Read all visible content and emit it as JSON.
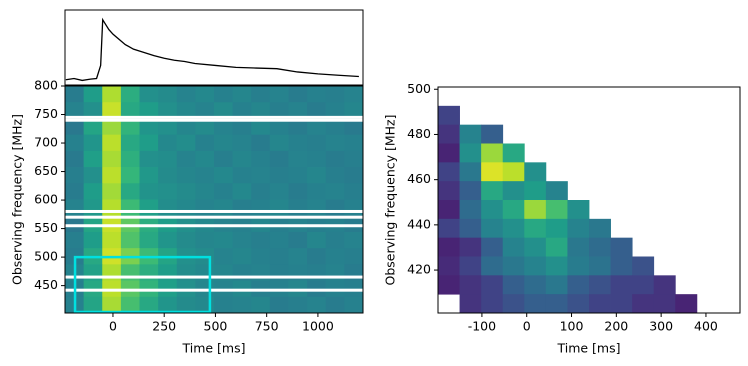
{
  "chart_data": [
    {
      "type": "line",
      "color": "#000000",
      "x": [
        -230,
        -190,
        -150,
        -110,
        -80,
        -60,
        -50,
        -40,
        -20,
        0,
        30,
        60,
        100,
        150,
        200,
        250,
        300,
        350,
        400,
        500,
        600,
        700,
        800,
        900,
        1000,
        1100,
        1200
      ],
      "values": [
        0.08,
        0.1,
        0.07,
        0.09,
        0.1,
        0.3,
        1.0,
        0.95,
        0.85,
        0.78,
        0.7,
        0.62,
        0.55,
        0.5,
        0.45,
        0.41,
        0.38,
        0.36,
        0.33,
        0.3,
        0.27,
        0.26,
        0.25,
        0.2,
        0.17,
        0.15,
        0.13
      ],
      "xlim": [
        -234,
        1220
      ],
      "ylim": [
        0,
        1.15
      ]
    },
    {
      "type": "heatmap",
      "colormap": "viridis",
      "xlabel": "Time [ms]",
      "ylabel": "Observing frequency [MHz]",
      "xlim": [
        -234,
        1220
      ],
      "ylim": [
        402,
        800
      ],
      "xticks": [
        0,
        250,
        500,
        750,
        1000
      ],
      "yticks": [
        450,
        500,
        550,
        600,
        650,
        700,
        750,
        800
      ],
      "masked_channels": [
        745,
        740,
        580,
        570,
        555,
        465,
        442
      ],
      "box": {
        "x": [
          -185,
          473
        ],
        "y": [
          402,
          500
        ],
        "color": "#00e0e0"
      },
      "z": [
        [
          0.42,
          0.55,
          0.88,
          0.62,
          0.5,
          0.48,
          0.45,
          0.47,
          0.44,
          0.46,
          0.43,
          0.45,
          0.42,
          0.44,
          0.43,
          0.45
        ],
        [
          0.45,
          0.5,
          0.92,
          0.6,
          0.55,
          0.5,
          0.47,
          0.45,
          0.48,
          0.44,
          0.46,
          0.43,
          0.45,
          0.42,
          0.44,
          0.46
        ],
        [
          0.4,
          0.58,
          0.85,
          0.65,
          0.52,
          0.5,
          0.46,
          0.48,
          0.45,
          0.43,
          0.47,
          0.44,
          0.42,
          0.45,
          0.43,
          0.41
        ],
        [
          0.44,
          0.52,
          0.9,
          0.6,
          0.55,
          0.47,
          0.49,
          0.44,
          0.46,
          0.45,
          0.42,
          0.46,
          0.44,
          0.43,
          0.45,
          0.44
        ],
        [
          0.41,
          0.56,
          0.87,
          0.63,
          0.5,
          0.49,
          0.45,
          0.47,
          0.43,
          0.46,
          0.44,
          0.42,
          0.45,
          0.44,
          0.42,
          0.43
        ],
        [
          0.43,
          0.5,
          0.9,
          0.66,
          0.53,
          0.48,
          0.46,
          0.45,
          0.47,
          0.44,
          0.45,
          0.43,
          0.44,
          0.46,
          0.43,
          0.42
        ],
        [
          0.42,
          0.55,
          0.86,
          0.6,
          0.51,
          0.5,
          0.48,
          0.46,
          0.44,
          0.47,
          0.43,
          0.45,
          0.42,
          0.44,
          0.45,
          0.43
        ],
        [
          0.45,
          0.53,
          0.89,
          0.68,
          0.56,
          0.49,
          0.47,
          0.45,
          0.46,
          0.43,
          0.44,
          0.46,
          0.43,
          0.45,
          0.42,
          0.44
        ],
        [
          0.4,
          0.58,
          0.92,
          0.75,
          0.62,
          0.55,
          0.5,
          0.47,
          0.45,
          0.44,
          0.46,
          0.43,
          0.45,
          0.43,
          0.44,
          0.42
        ],
        [
          0.43,
          0.55,
          0.9,
          0.72,
          0.6,
          0.52,
          0.48,
          0.46,
          0.47,
          0.45,
          0.43,
          0.44,
          0.42,
          0.46,
          0.43,
          0.45
        ],
        [
          0.42,
          0.6,
          0.93,
          0.8,
          0.68,
          0.58,
          0.5,
          0.48,
          0.45,
          0.46,
          0.44,
          0.43,
          0.45,
          0.42,
          0.44,
          0.43
        ],
        [
          0.45,
          0.57,
          0.88,
          0.7,
          0.62,
          0.55,
          0.49,
          0.47,
          0.46,
          0.44,
          0.45,
          0.43,
          0.44,
          0.43,
          0.45,
          0.42
        ],
        [
          0.43,
          0.6,
          0.9,
          0.74,
          0.65,
          0.56,
          0.5,
          0.46,
          0.45,
          0.47,
          0.43,
          0.44,
          0.46,
          0.42,
          0.44,
          0.43
        ],
        [
          0.44,
          0.58,
          0.87,
          0.7,
          0.6,
          0.52,
          0.48,
          0.47,
          0.44,
          0.45,
          0.46,
          0.42,
          0.43,
          0.45,
          0.42,
          0.44
        ]
      ]
    },
    {
      "type": "heatmap",
      "colormap": "viridis",
      "xlabel": "Time [ms]",
      "ylabel": "Observing frequency [MHz]",
      "xlim": [
        -198,
        476
      ],
      "ylim": [
        401,
        501
      ],
      "xticks": [
        -100,
        0,
        100,
        200,
        300,
        400
      ],
      "yticks": [
        420,
        440,
        460,
        480,
        500
      ],
      "z": [
        [
          null,
          null,
          null,
          null,
          null,
          null,
          null,
          null,
          null,
          null,
          null,
          null,
          null,
          null
        ],
        [
          0.2,
          null,
          null,
          null,
          null,
          null,
          null,
          null,
          null,
          null,
          null,
          null,
          null,
          null
        ],
        [
          0.15,
          0.45,
          0.3,
          null,
          null,
          null,
          null,
          null,
          null,
          null,
          null,
          null,
          null,
          null
        ],
        [
          0.1,
          0.5,
          0.85,
          0.6,
          null,
          null,
          null,
          null,
          null,
          null,
          null,
          null,
          null,
          null
        ],
        [
          0.2,
          0.4,
          0.95,
          0.9,
          0.5,
          null,
          null,
          null,
          null,
          null,
          null,
          null,
          null,
          null
        ],
        [
          0.15,
          0.3,
          0.6,
          0.5,
          0.55,
          0.45,
          null,
          null,
          null,
          null,
          null,
          null,
          null,
          null
        ],
        [
          0.1,
          0.35,
          0.5,
          0.6,
          0.85,
          0.7,
          0.5,
          null,
          null,
          null,
          null,
          null,
          null,
          null
        ],
        [
          0.2,
          0.3,
          0.45,
          0.5,
          0.6,
          0.55,
          0.45,
          0.4,
          null,
          null,
          null,
          null,
          null,
          null
        ],
        [
          0.1,
          0.15,
          0.3,
          0.45,
          0.5,
          0.6,
          0.4,
          0.35,
          0.3,
          null,
          null,
          null,
          null,
          null
        ],
        [
          0.12,
          0.2,
          0.35,
          0.4,
          0.45,
          0.5,
          0.42,
          0.38,
          0.3,
          0.25,
          null,
          null,
          null,
          null
        ],
        [
          0.1,
          0.15,
          0.2,
          0.3,
          0.35,
          0.4,
          0.3,
          0.25,
          0.2,
          0.2,
          0.15,
          null,
          null,
          null
        ],
        [
          null,
          0.15,
          0.2,
          0.25,
          0.3,
          0.3,
          0.25,
          0.2,
          0.2,
          0.15,
          0.15,
          0.1,
          null,
          null
        ]
      ]
    }
  ]
}
